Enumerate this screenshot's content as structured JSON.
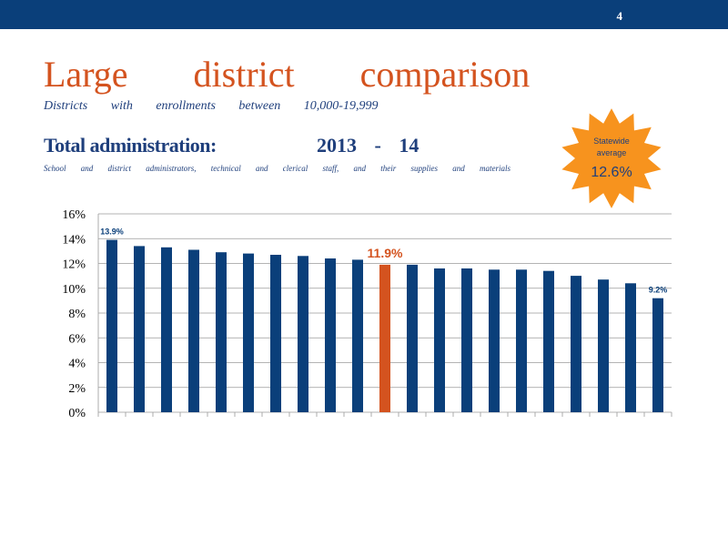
{
  "header": {
    "page_number": "4"
  },
  "title": "Large district comparison",
  "subtitle": "Districts with enrollments between 10,000-19,999",
  "metric_title": "Total administration:",
  "year_label": "2013 - 14",
  "description": "School and district administrators, technical and clerical staff, and their supplies and materials",
  "statewide_badge": {
    "line1": "Statewide",
    "line2": "average",
    "value": "12.6%"
  },
  "colors": {
    "bar": "#0a3f7a",
    "highlight": "#d4531f",
    "topbar": "#0a3f7a",
    "badge": "#f7931e"
  },
  "chart_data": {
    "type": "bar",
    "title": "",
    "xlabel": "",
    "ylabel": "",
    "ylim": [
      0,
      16
    ],
    "yticks": [
      "0%",
      "2%",
      "4%",
      "6%",
      "8%",
      "10%",
      "12%",
      "14%",
      "16%"
    ],
    "grid": true,
    "categories": [
      "",
      "",
      "",
      "",
      "",
      "",
      "",
      "",
      "",
      "",
      "",
      "",
      "",
      "",
      "",
      "",
      "",
      "",
      "",
      "",
      ""
    ],
    "values": [
      13.9,
      13.4,
      13.3,
      13.1,
      12.9,
      12.8,
      12.7,
      12.6,
      12.4,
      12.3,
      11.9,
      11.9,
      11.6,
      11.6,
      11.5,
      11.5,
      11.4,
      11.0,
      10.7,
      10.4,
      9.2
    ],
    "highlight_index": 10,
    "data_labels": [
      {
        "index": 0,
        "text": "13.9%"
      },
      {
        "index": 10,
        "text": "11.9%"
      },
      {
        "index": 20,
        "text": "9.2%"
      }
    ]
  }
}
